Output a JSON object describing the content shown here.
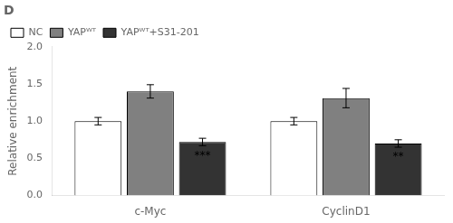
{
  "chart_data": {
    "type": "bar",
    "title": "D",
    "categories": [
      "c-Myc",
      "CyclinD1"
    ],
    "series": [
      {
        "name": "NC",
        "color": "white",
        "values": [
          1.0,
          1.0
        ],
        "errors": [
          0.05,
          0.05
        ]
      },
      {
        "name": "YAPᵂᵀ",
        "color": "#808080",
        "values": [
          1.4,
          1.31
        ],
        "errors": [
          0.09,
          0.13
        ]
      },
      {
        "name": "YAPᵂᵀ+S31-201",
        "color": "#333333",
        "values": [
          0.72,
          0.7
        ],
        "errors": [
          0.05,
          0.05
        ]
      }
    ],
    "ylabel": "Relative enrichment",
    "ylim": [
      0.0,
      2.0
    ],
    "yticks": [
      {
        "value": 0.0,
        "label": "0.0"
      },
      {
        "value": 0.5,
        "label": "0.5"
      },
      {
        "value": 1.0,
        "label": "1.0"
      },
      {
        "value": 1.5,
        "label": "1.5"
      },
      {
        "value": 2.0,
        "label": "2.0"
      }
    ],
    "annotations": [
      {
        "text": "***",
        "category": "c-Myc",
        "series": "YAPᵂᵀ+S31-201",
        "y": 0.6
      },
      {
        "text": "**",
        "category": "CyclinD1",
        "series": "YAPᵂᵀ+S31-201",
        "y": 0.59
      }
    ],
    "grid": false,
    "legend": "upper left"
  }
}
